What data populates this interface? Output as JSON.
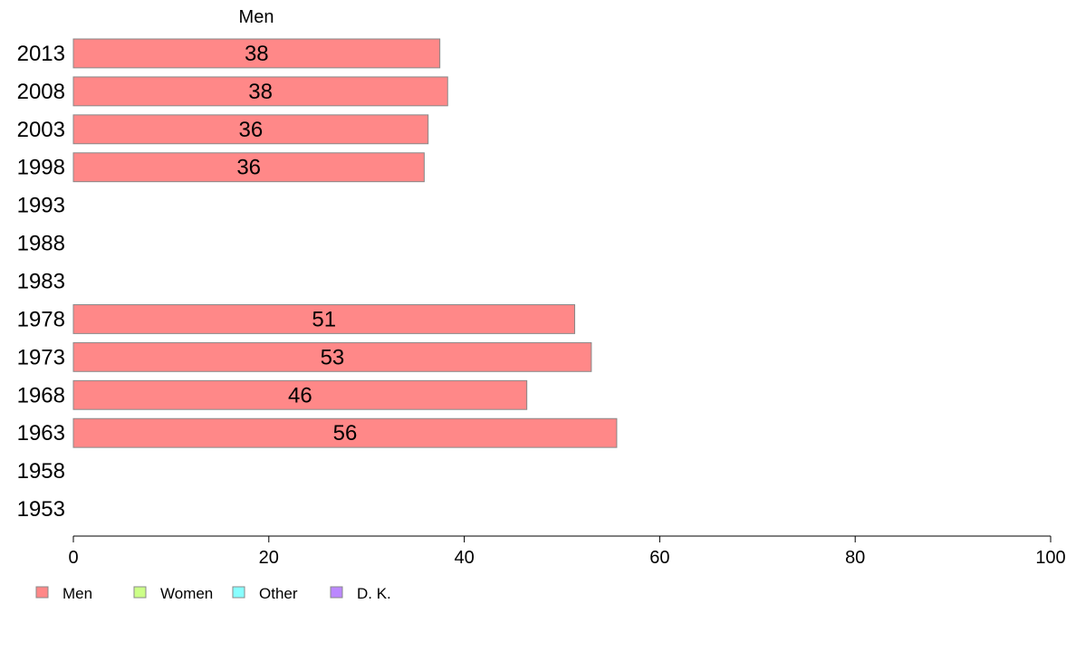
{
  "chart_data": {
    "type": "bar",
    "orientation": "horizontal",
    "stacked": true,
    "title": "Men",
    "categories": [
      "1953",
      "1958",
      "1963",
      "1968",
      "1973",
      "1978",
      "1983",
      "1988",
      "1993",
      "1998",
      "2003",
      "2008",
      "2013"
    ],
    "series": [
      {
        "name": "Men",
        "color": "#FF8888",
        "values": [
          null,
          null,
          55.6,
          46.4,
          53.0,
          51.3,
          null,
          null,
          null,
          35.9,
          36.3,
          38.3,
          37.5
        ],
        "labels": [
          "",
          "",
          "56",
          "46",
          "53",
          "51",
          "",
          "",
          "",
          "36",
          "36",
          "38",
          "38"
        ]
      },
      {
        "name": "Women",
        "color": "#CCFF88",
        "values": [
          null,
          null,
          null,
          null,
          null,
          null,
          null,
          null,
          null,
          null,
          null,
          null,
          null
        ],
        "labels": [
          "",
          "",
          "",
          "",
          "",
          "",
          "",
          "",
          "",
          "",
          "",
          "",
          ""
        ]
      },
      {
        "name": "Other",
        "color": "#88FFFF",
        "values": [
          null,
          null,
          null,
          null,
          null,
          null,
          null,
          null,
          null,
          null,
          null,
          null,
          null
        ],
        "labels": [
          "",
          "",
          "",
          "",
          "",
          "",
          "",
          "",
          "",
          "",
          "",
          "",
          ""
        ]
      },
      {
        "name": "D. K.",
        "color": "#BB88FF",
        "values": [
          null,
          null,
          null,
          null,
          null,
          null,
          null,
          null,
          null,
          null,
          null,
          null,
          null
        ],
        "labels": [
          "",
          "",
          "",
          "",
          "",
          "",
          "",
          "",
          "",
          "",
          "",
          "",
          ""
        ]
      }
    ],
    "xlim": [
      0,
      100
    ],
    "xticks": [
      0,
      20,
      40,
      60,
      80,
      100
    ],
    "xlabel": "",
    "ylabel": "",
    "grid": false,
    "legend_position": "bottom-left",
    "bar_border_color": "#888888"
  }
}
